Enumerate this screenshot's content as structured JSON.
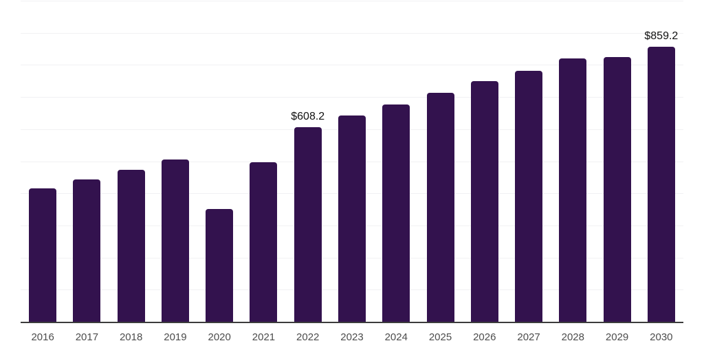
{
  "chart_data": {
    "type": "bar",
    "categories": [
      "2016",
      "2017",
      "2018",
      "2019",
      "2020",
      "2021",
      "2022",
      "2023",
      "2024",
      "2025",
      "2026",
      "2027",
      "2028",
      "2029",
      "2030"
    ],
    "values": [
      418,
      446,
      476,
      508,
      354,
      499,
      608.2,
      645,
      679,
      716,
      751,
      784,
      823,
      827,
      859.2
    ],
    "data_labels": {
      "2022": "$608.2",
      "2030": "$859.2"
    },
    "title": "",
    "xlabel": "",
    "ylabel": "",
    "ylim": [
      0,
      1000
    ],
    "gridline_step": 100,
    "grid": "horizontal-light",
    "legend": "none",
    "colors": {
      "bar": "#33124E",
      "gridline": "#f1f1f3",
      "axis_line": "#3c3c3c",
      "tick_label": "#4c4c4c",
      "data_label": "#111111",
      "background": "#ffffff"
    }
  }
}
